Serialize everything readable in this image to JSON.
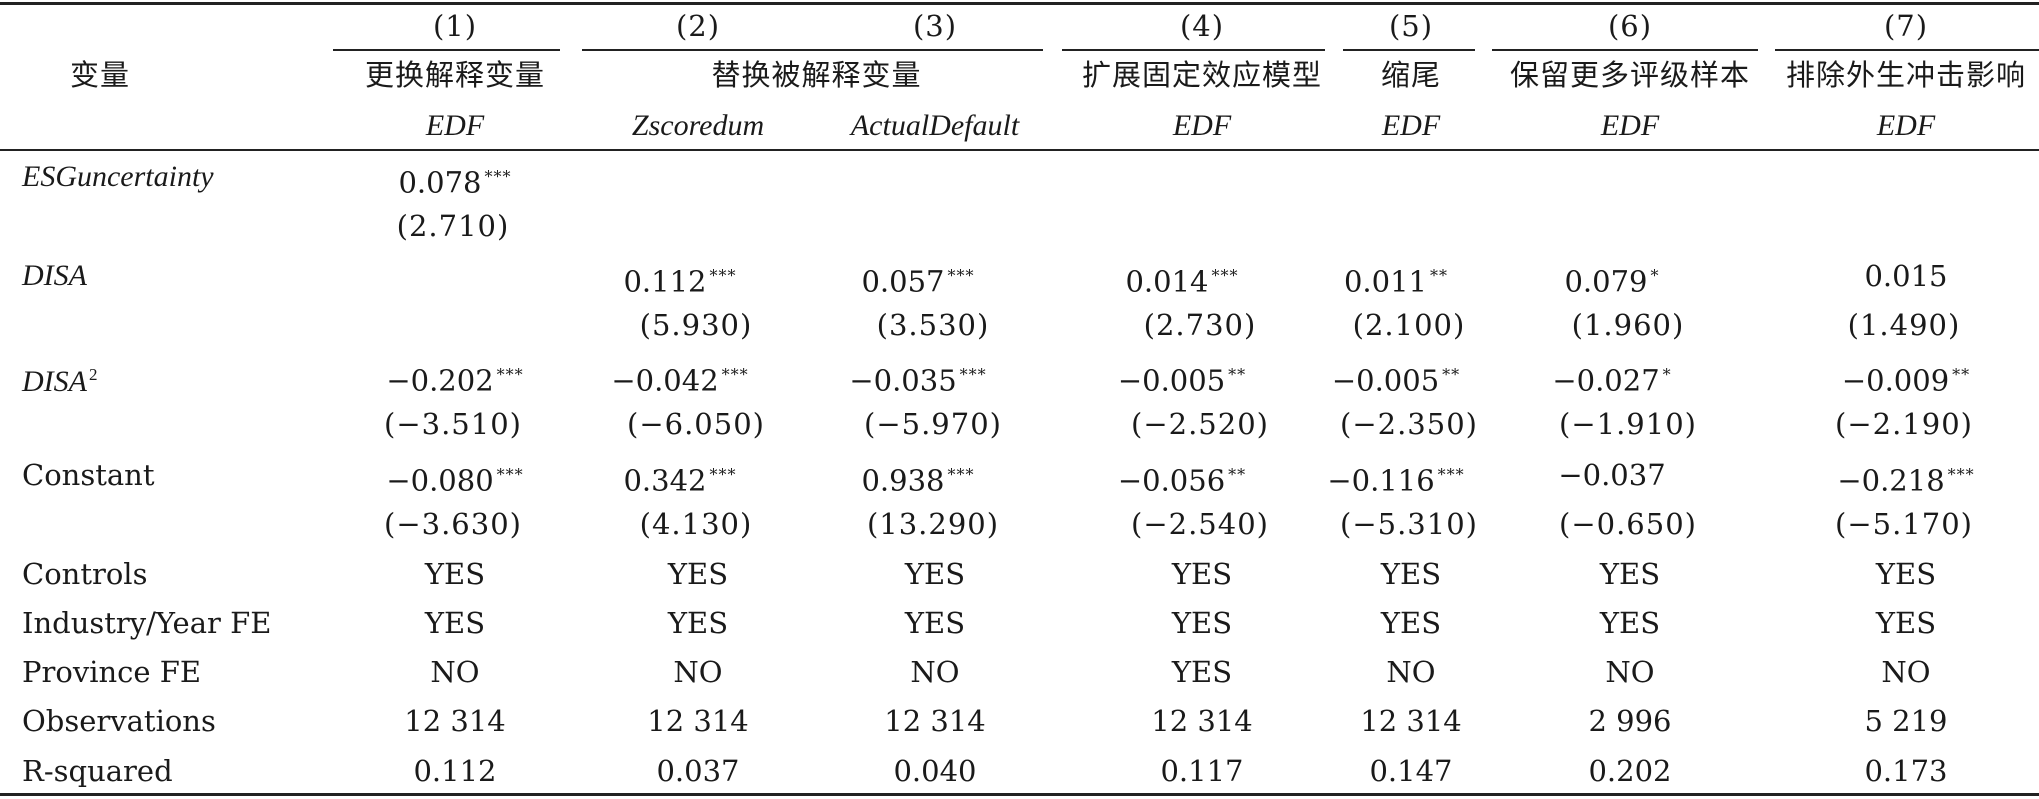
{
  "header": {
    "variable_label": "变量",
    "col_numbers": [
      "(1)",
      "(2)",
      "(3)",
      "(4)",
      "(5)",
      "(6)",
      "(7)"
    ],
    "groups": [
      {
        "label": "更换解释变量"
      },
      {
        "label": "替换被解释变量"
      },
      {
        "label": "扩展固定效应模型"
      },
      {
        "label": "缩尾"
      },
      {
        "label": "保留更多评级样本"
      },
      {
        "label": "排除外生冲击影响"
      }
    ],
    "dep_vars": [
      "EDF",
      "Zscoredum",
      "ActualDefault",
      "EDF",
      "EDF",
      "EDF",
      "EDF"
    ]
  },
  "rows": [
    {
      "label": "ESGuncertainty",
      "italic": true,
      "coef": [
        {
          "v": "0.078",
          "s": "***"
        },
        {
          "v": "",
          "s": ""
        },
        {
          "v": "",
          "s": ""
        },
        {
          "v": "",
          "s": ""
        },
        {
          "v": "",
          "s": ""
        },
        {
          "v": "",
          "s": ""
        },
        {
          "v": "",
          "s": ""
        }
      ],
      "t": [
        "(2.710)",
        "",
        "",
        "",
        "",
        "",
        ""
      ]
    },
    {
      "label": "DISA",
      "italic": true,
      "coef": [
        {
          "v": "",
          "s": ""
        },
        {
          "v": "0.112",
          "s": "***"
        },
        {
          "v": "0.057",
          "s": "***"
        },
        {
          "v": "0.014",
          "s": "***"
        },
        {
          "v": "0.011",
          "s": "**"
        },
        {
          "v": "0.079",
          "s": "*"
        },
        {
          "v": "0.015",
          "s": ""
        }
      ],
      "t": [
        "",
        "(5.930)",
        "(3.530)",
        "(2.730)",
        "(2.100)",
        "(1.960)",
        "(1.490)"
      ]
    },
    {
      "label": "DISA",
      "italic": true,
      "label_sup": "2",
      "coef": [
        {
          "v": "−0.202",
          "s": "***"
        },
        {
          "v": "−0.042",
          "s": "***"
        },
        {
          "v": "−0.035",
          "s": "***"
        },
        {
          "v": "−0.005",
          "s": "**"
        },
        {
          "v": "−0.005",
          "s": "**"
        },
        {
          "v": "−0.027",
          "s": "*"
        },
        {
          "v": "−0.009",
          "s": "**"
        }
      ],
      "t": [
        "(−3.510)",
        "(−6.050)",
        "(−5.970)",
        "(−2.520)",
        "(−2.350)",
        "(−1.910)",
        "(−2.190)"
      ]
    },
    {
      "label": "Constant",
      "italic": false,
      "coef": [
        {
          "v": "−0.080",
          "s": "***"
        },
        {
          "v": "0.342",
          "s": "***"
        },
        {
          "v": "0.938",
          "s": "***"
        },
        {
          "v": "−0.056",
          "s": "**"
        },
        {
          "v": "−0.116",
          "s": "***"
        },
        {
          "v": "−0.037",
          "s": ""
        },
        {
          "v": "−0.218",
          "s": "***"
        }
      ],
      "t": [
        "(−3.630)",
        "(4.130)",
        "(13.290)",
        "(−2.540)",
        "(−5.310)",
        "(−0.650)",
        "(−5.170)"
      ]
    }
  ],
  "footer_rows": [
    {
      "label": "Controls",
      "values": [
        "YES",
        "YES",
        "YES",
        "YES",
        "YES",
        "YES",
        "YES"
      ]
    },
    {
      "label": "Industry/Year FE",
      "values": [
        "YES",
        "YES",
        "YES",
        "YES",
        "YES",
        "YES",
        "YES"
      ]
    },
    {
      "label": "Province FE",
      "values": [
        "NO",
        "NO",
        "NO",
        "YES",
        "NO",
        "NO",
        "NO"
      ]
    },
    {
      "label": "Observations",
      "values": [
        "12 314",
        "12 314",
        "12 314",
        "12 314",
        "12 314",
        "2 996",
        "5 219"
      ]
    },
    {
      "label": "R-squared",
      "values": [
        "0.112",
        "0.037",
        "0.040",
        "0.117",
        "0.147",
        "0.202",
        "0.173"
      ]
    }
  ]
}
